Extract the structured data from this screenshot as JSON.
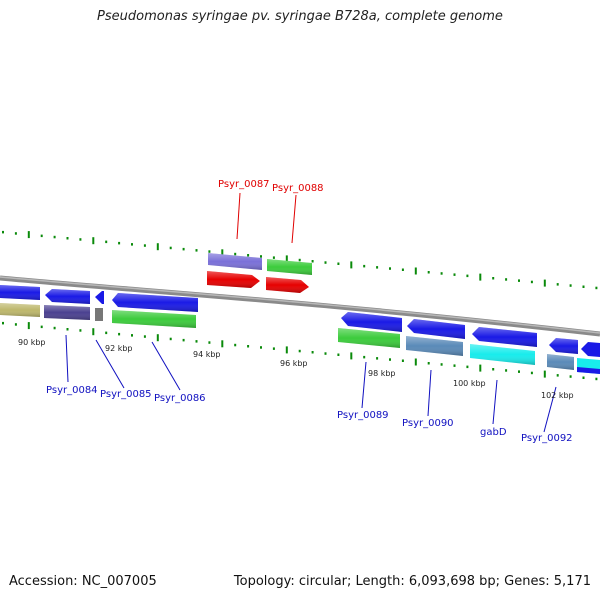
{
  "title": "Pseudomonas syringae pv. syringae B728a, complete genome",
  "footer": {
    "accession": "Accession: NC_007005",
    "topology": "Topology: circular; Length: 6,093,698 bp; Genes: 5,171"
  },
  "ticks": [
    "90 kbp",
    "92 kbp",
    "94 kbp",
    "96 kbp",
    "98 kbp",
    "100 kbp",
    "102 kbp"
  ],
  "gene_labels": [
    {
      "text": "Psyr_0087",
      "color": "#e00000"
    },
    {
      "text": "Psyr_0088",
      "color": "#e00000"
    },
    {
      "text": "Psyr_0084",
      "color": "#1010c0"
    },
    {
      "text": "Psyr_0085",
      "color": "#1010c0"
    },
    {
      "text": "Psyr_0086",
      "color": "#1010c0"
    },
    {
      "text": "Psyr_0089",
      "color": "#1010c0"
    },
    {
      "text": "Psyr_0090",
      "color": "#1010c0"
    },
    {
      "text": "gabD",
      "color": "#1010c0"
    },
    {
      "text": "Psyr_0092",
      "color": "#1010c0"
    }
  ],
  "colors": {
    "backbone": "#8a8a8a",
    "cds": "#1a1ae6",
    "rna": "#e60000",
    "green": "#3ccc3c",
    "purple": "#7a70d8",
    "steel": "#5a8ab8",
    "cyan": "#18ecec",
    "khaki": "#bdb76b",
    "navy": "#4a4090",
    "gc": "#0a8a0a"
  }
}
